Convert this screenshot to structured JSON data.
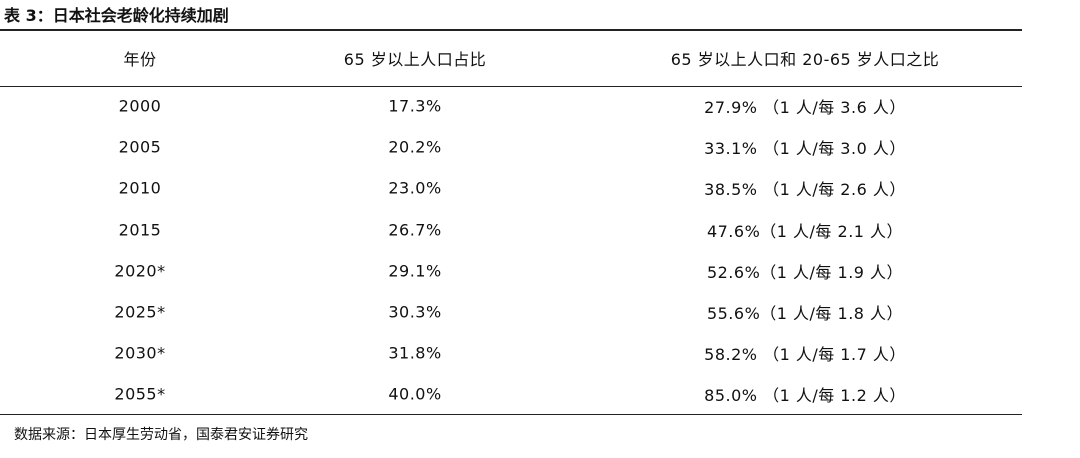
{
  "header": {
    "title": "表 3：日本社会老龄化持续加剧"
  },
  "table": {
    "columns": [
      "年份",
      "65 岁以上人口占比",
      "65 岁以上人口和 20-65 岁人口之比"
    ],
    "rows": [
      [
        "2000",
        "17.3%",
        "27.9% （1 人/每 3.6 人）"
      ],
      [
        "2005",
        "20.2%",
        "33.1% （1 人/每 3.0 人）"
      ],
      [
        "2010",
        "23.0%",
        "38.5% （1 人/每 2.6 人）"
      ],
      [
        "2015",
        "26.7%",
        "47.6%（1 人/每 2.1 人）"
      ],
      [
        "2020*",
        "29.1%",
        "52.6%（1 人/每 1.9 人）"
      ],
      [
        "2025*",
        "30.3%",
        "55.6%（1 人/每 1.8 人）"
      ],
      [
        "2030*",
        "31.8%",
        "58.2% （1 人/每 1.7 人）"
      ],
      [
        "2055*",
        "40.0%",
        "85.0% （1 人/每 1.2 人）"
      ]
    ]
  },
  "footer": {
    "source": "数据来源：日本厚生劳动省，国泰君安证券研究"
  }
}
